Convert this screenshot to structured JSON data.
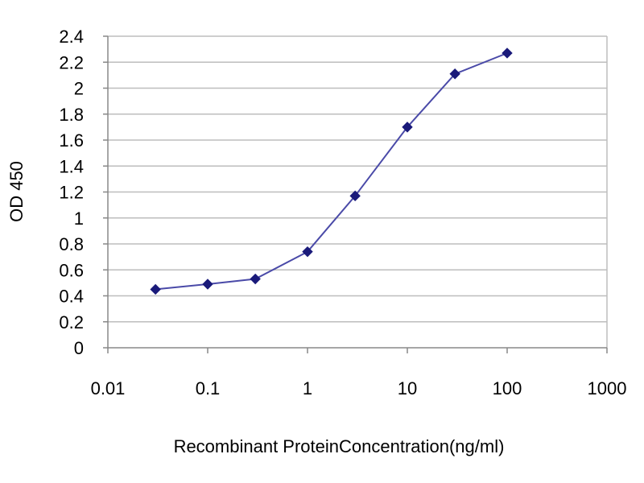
{
  "chart_data": {
    "type": "line",
    "title": "",
    "xlabel": "Recombinant ProteinConcentration(ng/ml)",
    "ylabel": "OD 450",
    "x_scale": "log",
    "xlim": [
      0.01,
      1000
    ],
    "ylim": [
      0,
      2.4
    ],
    "x_ticks": [
      "0.01",
      "0.1",
      "1",
      "10",
      "100",
      "1000"
    ],
    "y_ticks": [
      "0",
      "0.2",
      "0.4",
      "0.6",
      "0.8",
      "1",
      "1.2",
      "1.4",
      "1.6",
      "1.8",
      "2",
      "2.2",
      "2.4"
    ],
    "grid": "horizontal",
    "legend": "none",
    "series": [
      {
        "x": [
          0.03,
          0.1,
          0.3,
          1,
          3,
          10,
          30,
          100
        ],
        "y": [
          0.45,
          0.49,
          0.53,
          0.74,
          1.17,
          1.7,
          2.11,
          2.27
        ]
      }
    ],
    "colors": {
      "line": "#4a4aa8",
      "marker": "#1a1a7a",
      "grid": "#bdbdbd",
      "axis": "#888888",
      "background": "#ffffff"
    }
  }
}
